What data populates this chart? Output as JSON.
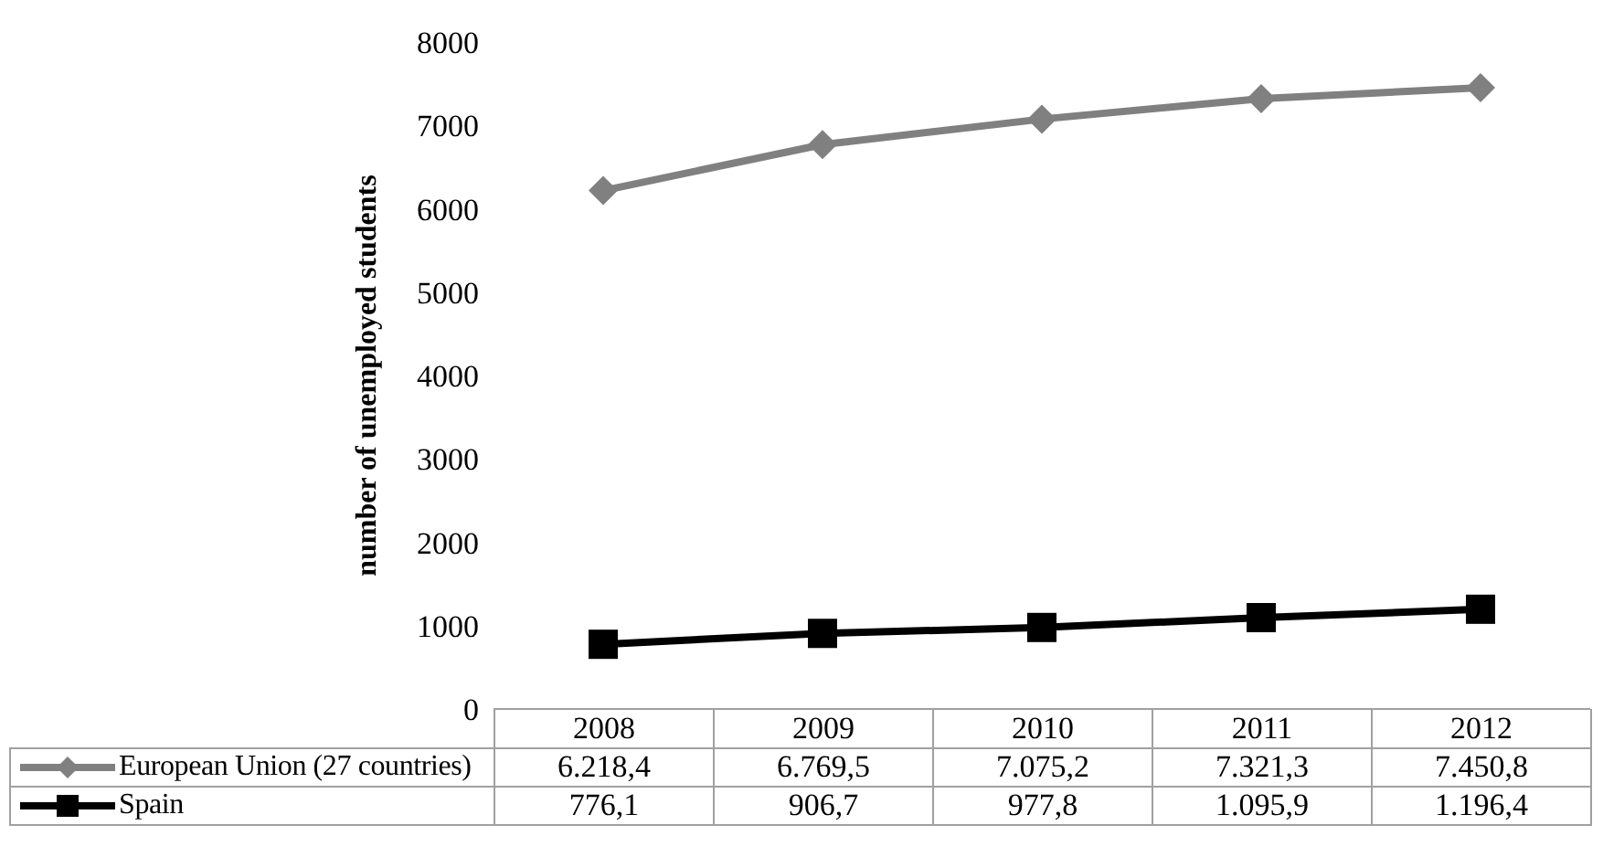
{
  "chart_data": {
    "type": "line",
    "ylabel": "number of unemployed students",
    "categories": [
      "2008",
      "2009",
      "2010",
      "2011",
      "2012"
    ],
    "series": [
      {
        "name": "European Union (27 countries)",
        "color": "#808080",
        "marker": "diamond",
        "values": [
          6218.4,
          6769.5,
          7075.2,
          7321.3,
          7450.8
        ],
        "value_labels": [
          "6.218,4",
          "6.769,5",
          "7.075,2",
          "7.321,3",
          "7.450,8"
        ]
      },
      {
        "name": "Spain",
        "color": "#000000",
        "marker": "square",
        "values": [
          776.1,
          906.7,
          977.8,
          1095.9,
          1196.4
        ],
        "value_labels": [
          "776,1",
          "906,7",
          "977,8",
          "1.095,9",
          "1.196,4"
        ]
      }
    ],
    "ylim": [
      0,
      8000
    ],
    "yticks": [
      0,
      1000,
      2000,
      3000,
      4000,
      5000,
      6000,
      7000,
      8000
    ],
    "grid": false,
    "legend": "bottom"
  }
}
